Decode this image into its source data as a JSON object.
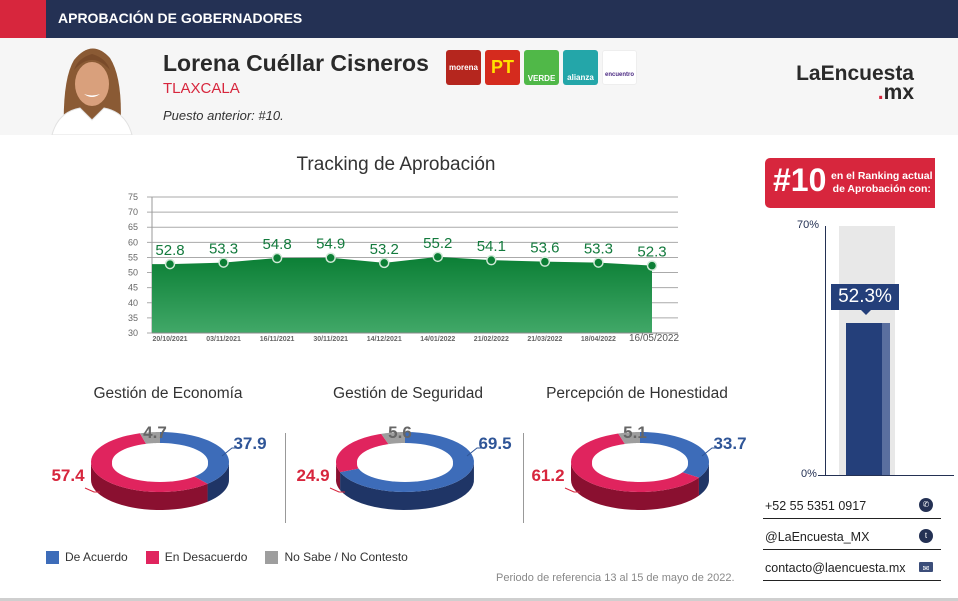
{
  "topbar": {
    "title": "APROBACIÓN DE GOBERNADORES"
  },
  "header": {
    "name": "Lorena Cuéllar Cisneros",
    "state": "TLAXCALA",
    "previous": "Puesto anterior: #10.",
    "parties": [
      {
        "id": "morena",
        "label": "morena"
      },
      {
        "id": "pt",
        "label": "PT"
      },
      {
        "id": "verde",
        "label": "VERDE"
      },
      {
        "id": "alianza",
        "label": "alianza"
      },
      {
        "id": "encuentro",
        "label": "encuentro"
      }
    ],
    "logo": {
      "line1": "LaEncuesta",
      "dot": ".",
      "line2": "mx"
    }
  },
  "ranking": {
    "number": "#10",
    "text_line1": "en el Ranking actual",
    "text_line2": "de Aprobación con:",
    "value": "52.3%",
    "axis_max": "70%",
    "axis_min": "0%"
  },
  "contact": {
    "phone": "+52 55 5351 0917",
    "twitter": "@LaEncuesta_MX",
    "email": "contacto@laencuesta.mx"
  },
  "legend": {
    "agree": "De Acuerdo",
    "disagree": "En Desacuerdo",
    "unknown": "No Sabe / No Contesto"
  },
  "colors": {
    "agree": "#3d6cb9",
    "disagree": "#e0245e",
    "unknown": "#9e9e9e",
    "navy": "#243154",
    "red": "#d7263d",
    "green": "#1a8a3f"
  },
  "period": "Periodo de referencia 13 al 15 de mayo de 2022.",
  "chart_data": [
    {
      "type": "area",
      "title": "Tracking de Aprobación",
      "categories": [
        "20/10/2021",
        "03/11/2021",
        "16/11/2021",
        "30/11/2021",
        "14/12/2021",
        "14/01/2022",
        "21/02/2022",
        "21/03/2022",
        "18/04/2022",
        "16/05/2022"
      ],
      "values": [
        52.8,
        53.3,
        54.8,
        54.9,
        53.2,
        55.2,
        54.1,
        53.6,
        53.3,
        52.3
      ],
      "ylim": [
        30,
        75
      ],
      "yticks": [
        30,
        35,
        40,
        45,
        50,
        55,
        60,
        65,
        70,
        75
      ],
      "grid": true,
      "xlabel": "",
      "ylabel": ""
    },
    {
      "type": "pie",
      "title": "Gestión de Economía",
      "categories": [
        "De Acuerdo",
        "En Desacuerdo",
        "No Sabe / No Contesto"
      ],
      "values": [
        37.9,
        57.4,
        4.7
      ],
      "labels": [
        "37.9",
        "57.4",
        "4.7"
      ]
    },
    {
      "type": "pie",
      "title": "Gestión de Seguridad",
      "categories": [
        "De Acuerdo",
        "En Desacuerdo",
        "No Sabe / No Contesto"
      ],
      "values": [
        69.5,
        24.9,
        5.6
      ],
      "labels": [
        "69.5",
        "24.9",
        "5.6"
      ]
    },
    {
      "type": "pie",
      "title": "Percepción de Honestidad",
      "categories": [
        "De Acuerdo",
        "En Desacuerdo",
        "No Sabe / No Contesto"
      ],
      "values": [
        33.7,
        61.2,
        5.1
      ],
      "labels": [
        "33.7",
        "61.2",
        "5.1"
      ]
    },
    {
      "type": "bar",
      "title": "Ranking actual de Aprobación",
      "categories": [
        "Aprobación"
      ],
      "values": [
        52.3
      ],
      "ylim": [
        0,
        70
      ]
    }
  ]
}
